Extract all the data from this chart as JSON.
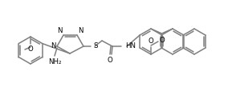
{
  "bg_color": "#ffffff",
  "line_color": "#7f7f7f",
  "text_color": "#000000",
  "fig_width": 2.89,
  "fig_height": 1.19,
  "dpi": 100,
  "lw": 1.1,
  "font_size": 6.2,
  "xlim": [
    0,
    289
  ],
  "ylim": [
    0,
    119
  ]
}
